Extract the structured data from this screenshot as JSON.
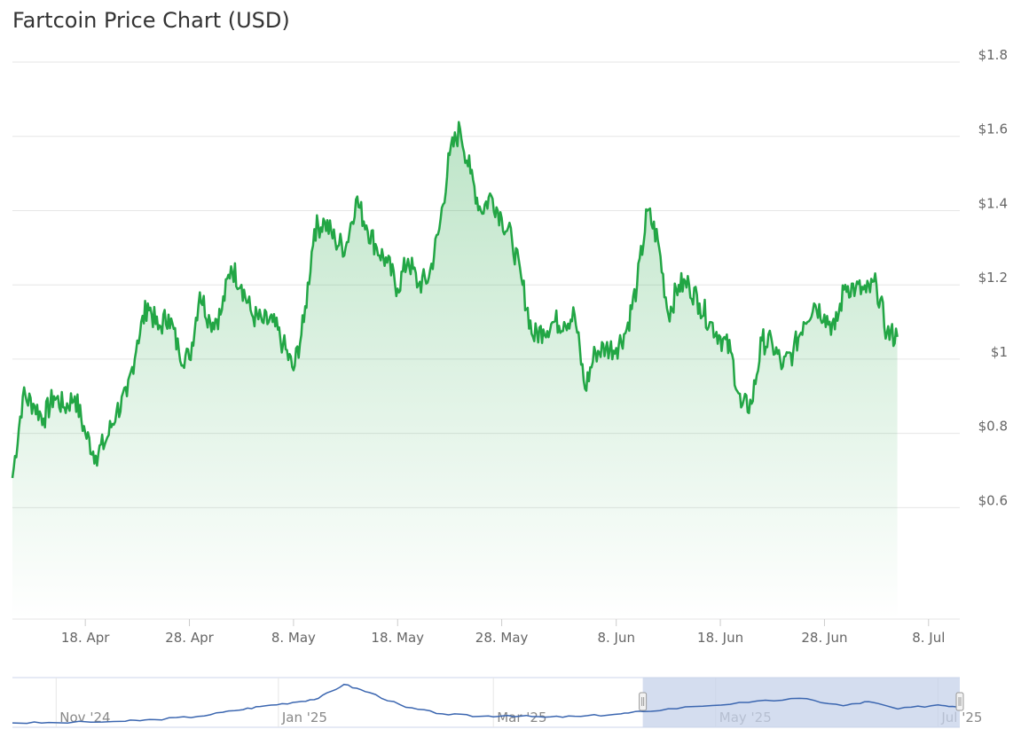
{
  "chart_data": {
    "type": "line",
    "title": "Fartcoin Price Chart (USD)",
    "xlabel": "",
    "ylabel": "",
    "ylim": [
      0.3,
      1.8
    ],
    "grid": true,
    "legend": "none",
    "line_color": "#22a645",
    "fill_color": "#22a645",
    "x_ticks": [
      "18. Apr",
      "28. Apr",
      "8. May",
      "18. May",
      "28. May",
      "8. Jun",
      "18. Jun",
      "28. Jun",
      "8. Jul"
    ],
    "y_ticks": [
      "$0.6",
      "$0.8",
      "$1",
      "$1.2",
      "$1.4",
      "$1.6",
      "$1.8"
    ],
    "y_tick_values": [
      0.6,
      0.8,
      1.0,
      1.2,
      1.4,
      1.6,
      1.8
    ],
    "x_start": "2025-04-11",
    "x_end": "2025-07-11",
    "series": [
      {
        "points": [
          [
            "2025-04-11",
            0.68
          ],
          [
            "2025-04-12",
            0.9
          ],
          [
            "2025-04-13",
            0.88
          ],
          [
            "2025-04-14",
            0.84
          ],
          [
            "2025-04-15",
            0.9
          ],
          [
            "2025-04-16",
            0.87
          ],
          [
            "2025-04-17",
            0.9
          ],
          [
            "2025-04-18",
            0.8
          ],
          [
            "2025-04-19",
            0.74
          ],
          [
            "2025-04-20",
            0.78
          ],
          [
            "2025-04-21",
            0.86
          ],
          [
            "2025-04-22",
            0.9
          ],
          [
            "2025-04-23",
            1.05
          ],
          [
            "2025-04-24",
            1.15
          ],
          [
            "2025-04-25",
            1.08
          ],
          [
            "2025-04-26",
            1.12
          ],
          [
            "2025-04-27",
            1.02
          ],
          [
            "2025-04-28",
            1.0
          ],
          [
            "2025-04-29",
            1.18
          ],
          [
            "2025-04-30",
            1.1
          ],
          [
            "2025-05-01",
            1.12
          ],
          [
            "2025-05-02",
            1.25
          ],
          [
            "2025-05-03",
            1.2
          ],
          [
            "2025-05-04",
            1.12
          ],
          [
            "2025-05-05",
            1.1
          ],
          [
            "2025-05-06",
            1.1
          ],
          [
            "2025-05-07",
            1.04
          ],
          [
            "2025-05-08",
            0.97
          ],
          [
            "2025-05-09",
            1.1
          ],
          [
            "2025-05-10",
            1.35
          ],
          [
            "2025-05-11",
            1.37
          ],
          [
            "2025-05-12",
            1.32
          ],
          [
            "2025-05-13",
            1.3
          ],
          [
            "2025-05-14",
            1.43
          ],
          [
            "2025-05-15",
            1.36
          ],
          [
            "2025-05-16",
            1.3
          ],
          [
            "2025-05-17",
            1.26
          ],
          [
            "2025-05-18",
            1.19
          ],
          [
            "2025-05-19",
            1.27
          ],
          [
            "2025-05-20",
            1.2
          ],
          [
            "2025-05-21",
            1.22
          ],
          [
            "2025-05-22",
            1.35
          ],
          [
            "2025-05-23",
            1.55
          ],
          [
            "2025-05-24",
            1.62
          ],
          [
            "2025-05-25",
            1.5
          ],
          [
            "2025-05-26",
            1.4
          ],
          [
            "2025-05-27",
            1.44
          ],
          [
            "2025-05-28",
            1.38
          ],
          [
            "2025-05-29",
            1.32
          ],
          [
            "2025-05-30",
            1.2
          ],
          [
            "2025-05-31",
            1.06
          ],
          [
            "2025-06-01",
            1.08
          ],
          [
            "2025-06-02",
            1.1
          ],
          [
            "2025-06-03",
            1.1
          ],
          [
            "2025-06-04",
            1.12
          ],
          [
            "2025-06-05",
            0.92
          ],
          [
            "2025-06-06",
            1.02
          ],
          [
            "2025-06-07",
            1.03
          ],
          [
            "2025-06-08",
            1.03
          ],
          [
            "2025-06-09",
            1.08
          ],
          [
            "2025-06-10",
            1.2
          ],
          [
            "2025-06-11",
            1.4
          ],
          [
            "2025-06-12",
            1.32
          ],
          [
            "2025-06-13",
            1.12
          ],
          [
            "2025-06-14",
            1.2
          ],
          [
            "2025-06-15",
            1.2
          ],
          [
            "2025-06-16",
            1.15
          ],
          [
            "2025-06-17",
            1.1
          ],
          [
            "2025-06-18",
            1.06
          ],
          [
            "2025-06-19",
            1.02
          ],
          [
            "2025-06-20",
            0.87
          ],
          [
            "2025-06-21",
            0.88
          ],
          [
            "2025-06-22",
            1.05
          ],
          [
            "2025-06-23",
            1.04
          ],
          [
            "2025-06-24",
            0.98
          ],
          [
            "2025-06-25",
            1.02
          ],
          [
            "2025-06-26",
            1.1
          ],
          [
            "2025-06-27",
            1.15
          ],
          [
            "2025-06-28",
            1.12
          ],
          [
            "2025-06-29",
            1.08
          ],
          [
            "2025-06-30",
            1.2
          ],
          [
            "2025-07-01",
            1.19
          ],
          [
            "2025-07-02",
            1.18
          ],
          [
            "2025-07-03",
            1.2
          ],
          [
            "2025-07-04",
            1.07
          ],
          [
            "2025-07-05",
            1.06
          ]
        ]
      }
    ],
    "navigator": {
      "x_labels": [
        "Nov '24",
        "Jan '25",
        "Mar '25",
        "May '25",
        "Jul '25"
      ],
      "x_label_dates": [
        "2024-11-01",
        "2025-01-01",
        "2025-03-01",
        "2025-05-01",
        "2025-07-01"
      ],
      "x_start": "2024-10-20",
      "x_end": "2025-07-07",
      "selected_range": [
        "2025-04-11",
        "2025-07-07"
      ],
      "line_color": "#3b66b0",
      "mask_color": "#c6d2ea",
      "points": [
        [
          "2024-10-20",
          0.05
        ],
        [
          "2024-11-01",
          0.06
        ],
        [
          "2024-11-20",
          0.15
        ],
        [
          "2024-11-28",
          0.25
        ],
        [
          "2024-12-10",
          0.45
        ],
        [
          "2024-12-20",
          0.8
        ],
        [
          "2024-12-27",
          1.05
        ],
        [
          "2025-01-05",
          1.3
        ],
        [
          "2025-01-12",
          1.55
        ],
        [
          "2025-01-19",
          2.4
        ],
        [
          "2025-01-26",
          1.9
        ],
        [
          "2025-02-05",
          1.0
        ],
        [
          "2025-02-15",
          0.6
        ],
        [
          "2025-02-25",
          0.45
        ],
        [
          "2025-03-05",
          0.5
        ],
        [
          "2025-03-15",
          0.4
        ],
        [
          "2025-03-25",
          0.45
        ],
        [
          "2025-04-05",
          0.6
        ],
        [
          "2025-04-11",
          0.75
        ],
        [
          "2025-04-25",
          1.05
        ],
        [
          "2025-05-10",
          1.3
        ],
        [
          "2025-05-24",
          1.55
        ],
        [
          "2025-06-05",
          1.1
        ],
        [
          "2025-06-12",
          1.35
        ],
        [
          "2025-06-20",
          0.9
        ],
        [
          "2025-07-01",
          1.15
        ],
        [
          "2025-07-07",
          1.05
        ]
      ]
    }
  }
}
